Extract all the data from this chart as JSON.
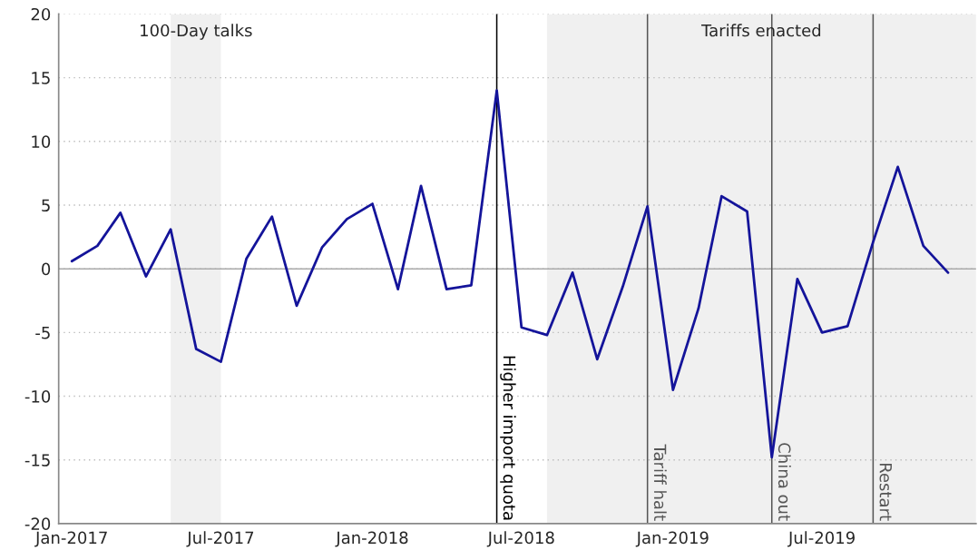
{
  "chart_data": {
    "type": "line",
    "x": [
      "2017-01",
      "2017-02",
      "2017-03",
      "2017-04",
      "2017-05",
      "2017-06",
      "2017-07",
      "2017-08",
      "2017-09",
      "2017-10",
      "2017-11",
      "2017-12",
      "2018-01",
      "2018-02",
      "2018-03",
      "2018-04",
      "2018-05",
      "2018-06",
      "2018-07",
      "2018-08",
      "2018-09",
      "2018-10",
      "2018-11",
      "2018-12",
      "2019-01",
      "2019-02",
      "2019-03",
      "2019-04",
      "2019-05",
      "2019-06",
      "2019-07",
      "2019-08",
      "2019-09",
      "2019-10",
      "2019-11",
      "2019-12"
    ],
    "series": [
      {
        "color": "#14149a",
        "values": [
          0.6,
          1.8,
          4.4,
          -0.6,
          3.1,
          -6.3,
          -7.3,
          0.8,
          4.1,
          -2.9,
          1.7,
          3.9,
          5.1,
          -1.6,
          6.5,
          -1.6,
          -1.3,
          14.0,
          -4.6,
          -5.2,
          -0.3,
          -7.1,
          -1.4,
          4.9,
          -9.5,
          -3.1,
          5.7,
          4.5,
          -14.8,
          -0.8,
          -5.0,
          -4.5,
          2.1,
          8.0,
          1.8,
          -0.3
        ]
      }
    ],
    "xlim": [
      "2016-12-16",
      "2020-01-04"
    ],
    "xticks": [
      {
        "value": "2017-01",
        "label": "Jan-2017"
      },
      {
        "value": "2017-07",
        "label": "Jul-2017"
      },
      {
        "value": "2018-01",
        "label": "Jan-2018"
      },
      {
        "value": "2018-07",
        "label": "Jul-2018"
      },
      {
        "value": "2019-01",
        "label": "Jan-2019"
      },
      {
        "value": "2019-07",
        "label": "Jul-2019"
      }
    ],
    "ylim": [
      -20,
      20
    ],
    "yticks": [
      -20,
      -15,
      -10,
      -5,
      0,
      5,
      10,
      15,
      20
    ],
    "grid": "y",
    "line_style": "solid",
    "marker": "none",
    "bands": [
      {
        "axis": "x",
        "from": "2017-05",
        "to": "2017-07",
        "label": "100-Day talks",
        "color": "#f0f0f0"
      },
      {
        "axis": "x",
        "from": "2018-08",
        "to": "2020-01-04",
        "label": "Tariffs enacted",
        "color": "#f0f0f0"
      }
    ],
    "ref_lines": [
      {
        "axis": "y",
        "value": 0,
        "color": "#aaaaaa"
      },
      {
        "axis": "x",
        "value": "2018-06",
        "label": "Higher import quota",
        "color": "#000000"
      },
      {
        "axis": "x",
        "value": "2018-12",
        "label": "Tariff halt",
        "color": "#555555"
      },
      {
        "axis": "x",
        "value": "2019-05",
        "label": "China out",
        "color": "#555555"
      },
      {
        "axis": "x",
        "value": "2019-09",
        "label": "Restart",
        "color": "#555555"
      }
    ]
  }
}
